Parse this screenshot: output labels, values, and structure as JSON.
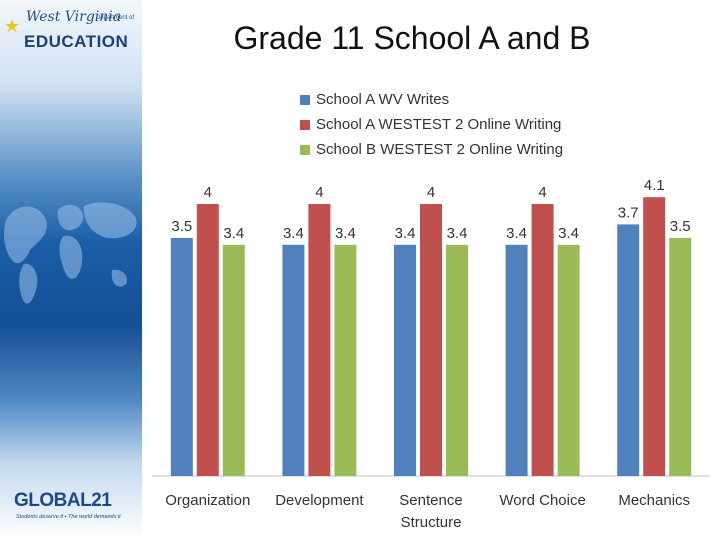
{
  "branding": {
    "wv_logo_script": "West Virginia",
    "wv_logo_dept": "Department of",
    "wv_logo_main": "EDUCATION",
    "global21_logo": "GLOBAL21",
    "global21_tagline": "Students deserve it • The world demands it"
  },
  "colors": {
    "series_a": "#4f81bd",
    "series_b": "#c0504d",
    "series_c": "#9bbb59"
  },
  "chart_data": {
    "type": "bar",
    "title": "Grade 11 School A and B",
    "categories": [
      "Organization",
      "Development",
      "Sentence\nStructure",
      "Word Choice",
      "Mechanics"
    ],
    "series": [
      {
        "name": "School A WV Writes",
        "values": [
          3.5,
          3.4,
          3.4,
          3.4,
          3.7
        ]
      },
      {
        "name": "School A WESTEST 2 Online Writing",
        "values": [
          4,
          4,
          4,
          4,
          4.1
        ]
      },
      {
        "name": "School B WESTEST 2 Online Writing",
        "values": [
          3.4,
          3.4,
          3.4,
          3.4,
          3.5
        ]
      }
    ],
    "ylim": [
      0,
      4.5
    ],
    "grid": false,
    "legend": "top"
  }
}
